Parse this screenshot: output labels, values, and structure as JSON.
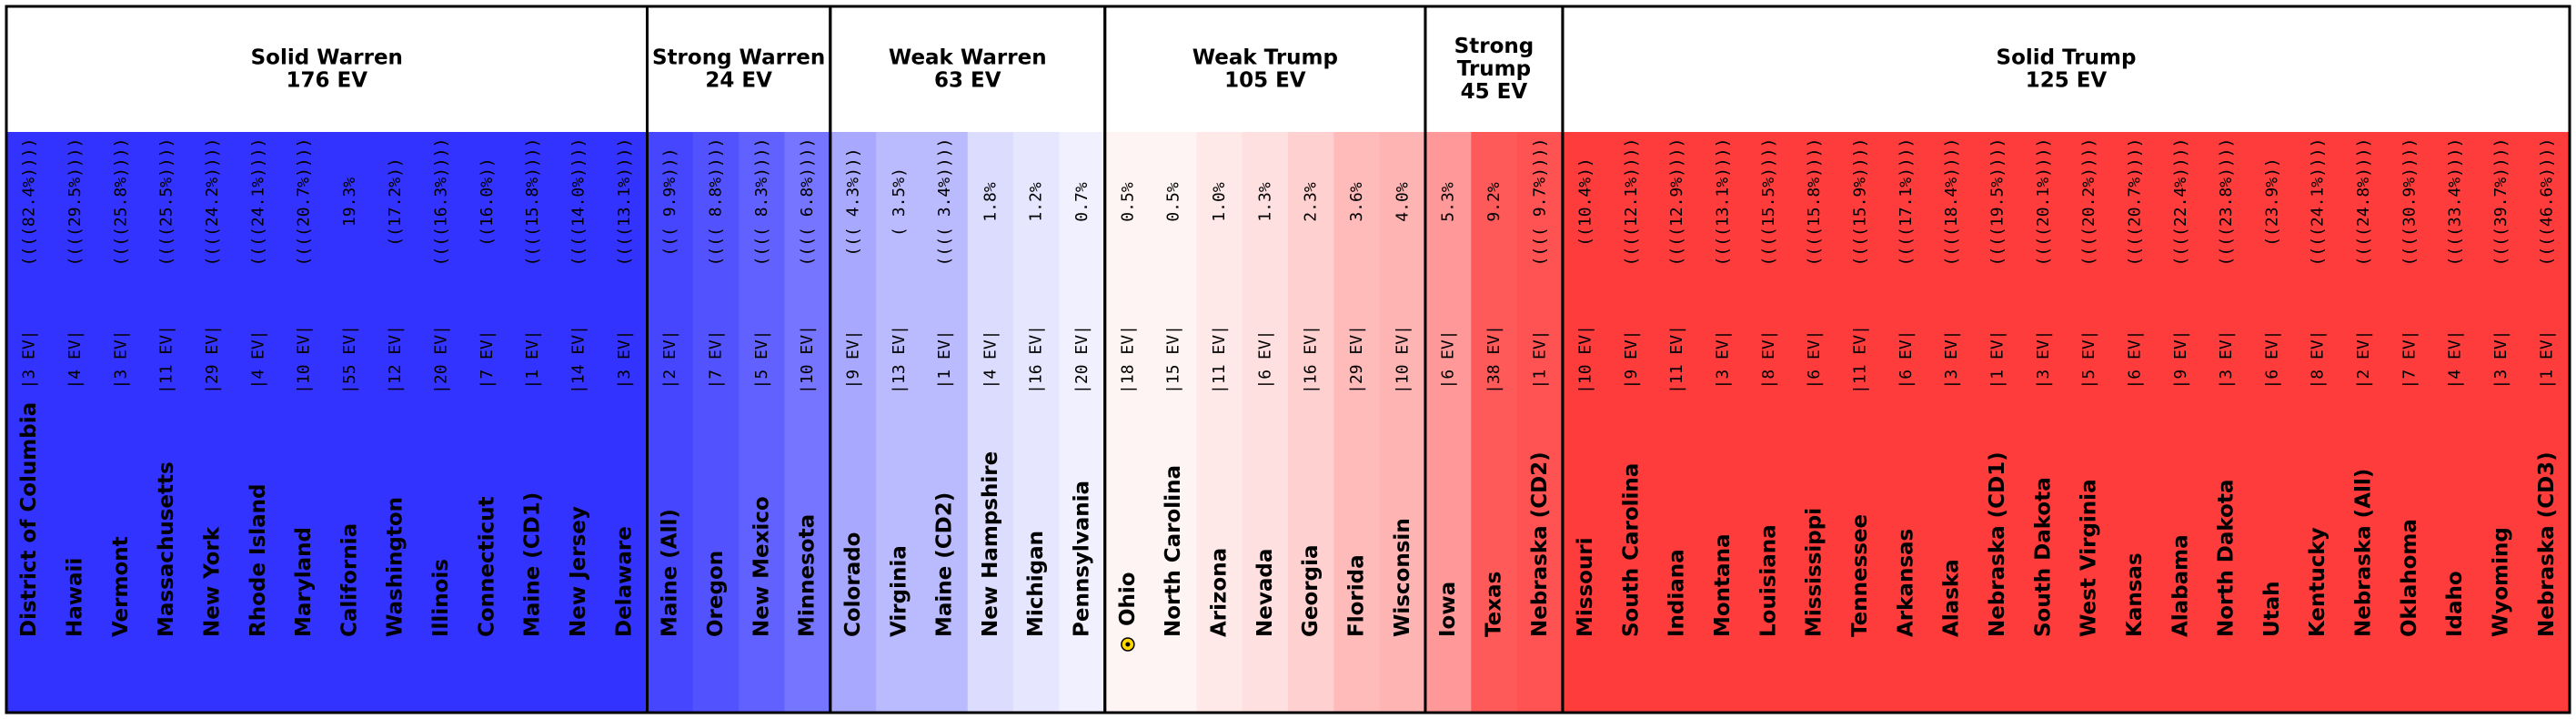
{
  "chart_data": {
    "type": "bar",
    "groups": [
      {
        "title": "Solid Warren",
        "ev_label": "176 EV",
        "states": [
          {
            "name": "District of Columbia",
            "ev": "3",
            "margin": "((((82.4%))))",
            "color": "#3333ff"
          },
          {
            "name": "Hawaii",
            "ev": "4",
            "margin": "((((29.5%))))",
            "color": "#3333ff"
          },
          {
            "name": "Vermont",
            "ev": "3",
            "margin": "((((25.8%))))",
            "color": "#3333ff"
          },
          {
            "name": "Massachusetts",
            "ev": "11",
            "margin": "((((25.5%))))",
            "color": "#3333ff"
          },
          {
            "name": "New York",
            "ev": "29",
            "margin": "((((24.2%))))",
            "color": "#3333ff"
          },
          {
            "name": "Rhode Island",
            "ev": "4",
            "margin": "((((24.1%))))",
            "color": "#3333ff"
          },
          {
            "name": "Maryland",
            "ev": "10",
            "margin": "((((20.7%))))",
            "color": "#3333ff"
          },
          {
            "name": "California",
            "ev": "55",
            "margin": "19.3%",
            "color": "#3333ff"
          },
          {
            "name": "Washington",
            "ev": "12",
            "margin": "((17.2%))",
            "color": "#3333ff"
          },
          {
            "name": "Illinois",
            "ev": "20",
            "margin": "((((16.3%))))",
            "color": "#3333ff"
          },
          {
            "name": "Connecticut",
            "ev": "7",
            "margin": "((16.0%))",
            "color": "#3333ff"
          },
          {
            "name": "Maine (CD1)",
            "ev": "1",
            "margin": "((((15.8%))))",
            "color": "#3333ff"
          },
          {
            "name": "New Jersey",
            "ev": "14",
            "margin": "((((14.0%))))",
            "color": "#3333ff"
          },
          {
            "name": "Delaware",
            "ev": "3",
            "margin": "((((13.1%))))",
            "color": "#3333ff"
          }
        ]
      },
      {
        "title": "Strong Warren",
        "ev_label": "24 EV",
        "states": [
          {
            "name": "Maine (All)",
            "ev": "2",
            "margin": "((( 9.9%)))",
            "color": "#4646ff"
          },
          {
            "name": "Oregon",
            "ev": "7",
            "margin": "(((( 8.8%))))",
            "color": "#5252ff"
          },
          {
            "name": "New Mexico",
            "ev": "5",
            "margin": "(((( 8.3%))))",
            "color": "#6161ff"
          },
          {
            "name": "Minnesota",
            "ev": "10",
            "margin": "(((( 6.8%))))",
            "color": "#7575ff"
          }
        ]
      },
      {
        "title": "Weak Warren",
        "ev_label": "63 EV",
        "states": [
          {
            "name": "Colorado",
            "ev": "9",
            "margin": "((( 4.3%)))",
            "color": "#a8a8ff"
          },
          {
            "name": "Virginia",
            "ev": "13",
            "margin": "( 3.5%)",
            "color": "#babaff"
          },
          {
            "name": "Maine (CD2)",
            "ev": "1",
            "margin": "(((( 3.4%))))",
            "color": "#babaff"
          },
          {
            "name": "New Hampshire",
            "ev": "4",
            "margin": "1.8%",
            "color": "#dcdcff"
          },
          {
            "name": "Michigan",
            "ev": "16",
            "margin": "1.2%",
            "color": "#e6e6ff"
          },
          {
            "name": "Pennsylvania",
            "ev": "20",
            "margin": "0.7%",
            "color": "#f0f0ff"
          }
        ]
      },
      {
        "title": "Weak Trump",
        "ev_label": "105 EV",
        "states": [
          {
            "name": "Ohio",
            "ev": "18",
            "margin": "0.5%",
            "color": "#fff4f4",
            "marker": true
          },
          {
            "name": "North Carolina",
            "ev": "15",
            "margin": "0.5%",
            "color": "#fff4f4"
          },
          {
            "name": "Arizona",
            "ev": "11",
            "margin": "1.0%",
            "color": "#ffe8e8"
          },
          {
            "name": "Nevada",
            "ev": "6",
            "margin": "1.3%",
            "color": "#ffe0e0"
          },
          {
            "name": "Georgia",
            "ev": "16",
            "margin": "2.3%",
            "color": "#ffd0d0"
          },
          {
            "name": "Florida",
            "ev": "29",
            "margin": "3.6%",
            "color": "#ffbaba"
          },
          {
            "name": "Wisconsin",
            "ev": "10",
            "margin": "4.0%",
            "color": "#ffb4b4"
          }
        ]
      },
      {
        "title": "Strong\nTrump",
        "ev_label": "45 EV",
        "states": [
          {
            "name": "Iowa",
            "ev": "6",
            "margin": "5.3%",
            "color": "#ff9898"
          },
          {
            "name": "Texas",
            "ev": "38",
            "margin": "9.2%",
            "color": "#ff5a5a"
          },
          {
            "name": "Nebraska (CD2)",
            "ev": "1",
            "margin": "(((( 9.7%))))",
            "color": "#ff5252"
          }
        ]
      },
      {
        "title": "Solid Trump",
        "ev_label": "125 EV",
        "states": [
          {
            "name": "Missouri",
            "ev": "10",
            "margin": "((10.4%))",
            "color": "#ff3c3c"
          },
          {
            "name": "South Carolina",
            "ev": "9",
            "margin": "((((12.1%))))",
            "color": "#ff3c3c"
          },
          {
            "name": "Indiana",
            "ev": "11",
            "margin": "((((12.9%))))",
            "color": "#ff3c3c"
          },
          {
            "name": "Montana",
            "ev": "3",
            "margin": "((((13.1%))))",
            "color": "#ff3c3c"
          },
          {
            "name": "Louisiana",
            "ev": "8",
            "margin": "((((15.5%))))",
            "color": "#ff3c3c"
          },
          {
            "name": "Mississippi",
            "ev": "6",
            "margin": "((((15.8%))))",
            "color": "#ff3c3c"
          },
          {
            "name": "Tennessee",
            "ev": "11",
            "margin": "((((15.9%))))",
            "color": "#ff3c3c"
          },
          {
            "name": "Arkansas",
            "ev": "6",
            "margin": "((((17.1%))))",
            "color": "#ff3c3c"
          },
          {
            "name": "Alaska",
            "ev": "3",
            "margin": "((((18.4%))))",
            "color": "#ff3c3c"
          },
          {
            "name": "Nebraska (CD1)",
            "ev": "1",
            "margin": "((((19.5%))))",
            "color": "#ff3c3c"
          },
          {
            "name": "South Dakota",
            "ev": "3",
            "margin": "((((20.1%))))",
            "color": "#ff3c3c"
          },
          {
            "name": "West Virginia",
            "ev": "5",
            "margin": "((((20.2%))))",
            "color": "#ff3c3c"
          },
          {
            "name": "Kansas",
            "ev": "6",
            "margin": "((((20.7%))))",
            "color": "#ff3c3c"
          },
          {
            "name": "Alabama",
            "ev": "9",
            "margin": "((((22.4%))))",
            "color": "#ff3c3c"
          },
          {
            "name": "North Dakota",
            "ev": "3",
            "margin": "((((23.8%))))",
            "color": "#ff3c3c"
          },
          {
            "name": "Utah",
            "ev": "6",
            "margin": "((23.9%))",
            "color": "#ff3c3c"
          },
          {
            "name": "Kentucky",
            "ev": "8",
            "margin": "((((24.1%))))",
            "color": "#ff3c3c"
          },
          {
            "name": "Nebraska (All)",
            "ev": "2",
            "margin": "((((24.8%))))",
            "color": "#ff3c3c"
          },
          {
            "name": "Oklahoma",
            "ev": "7",
            "margin": "((((30.9%))))",
            "color": "#ff3c3c"
          },
          {
            "name": "Idaho",
            "ev": "4",
            "margin": "((((33.4%))))",
            "color": "#ff3c3c"
          },
          {
            "name": "Wyoming",
            "ev": "3",
            "margin": "((((39.7%))))",
            "color": "#ff3c3c"
          },
          {
            "name": "Nebraska (CD3)",
            "ev": "1",
            "margin": "((((46.6%))))",
            "color": "#ff3c3c"
          }
        ]
      }
    ]
  }
}
